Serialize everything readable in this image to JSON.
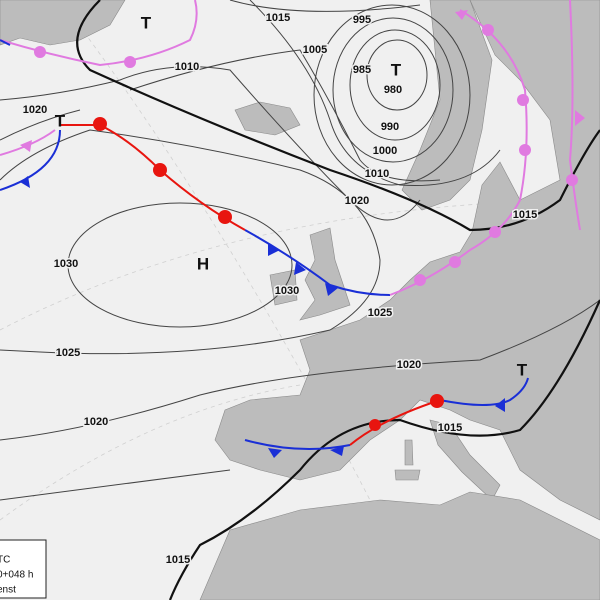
{
  "isobar_labels": [
    1015,
    995,
    1005,
    1010,
    985,
    980,
    990,
    1000,
    1010,
    1020,
    1020,
    1015,
    1030,
    1030,
    1025,
    1025,
    1020,
    1020,
    1015,
    1015
  ],
  "pressure_centers": [
    "T",
    "T",
    "T",
    "H",
    "T"
  ],
  "legend": [
    "TC",
    "0+048 h",
    "enst"
  ]
}
